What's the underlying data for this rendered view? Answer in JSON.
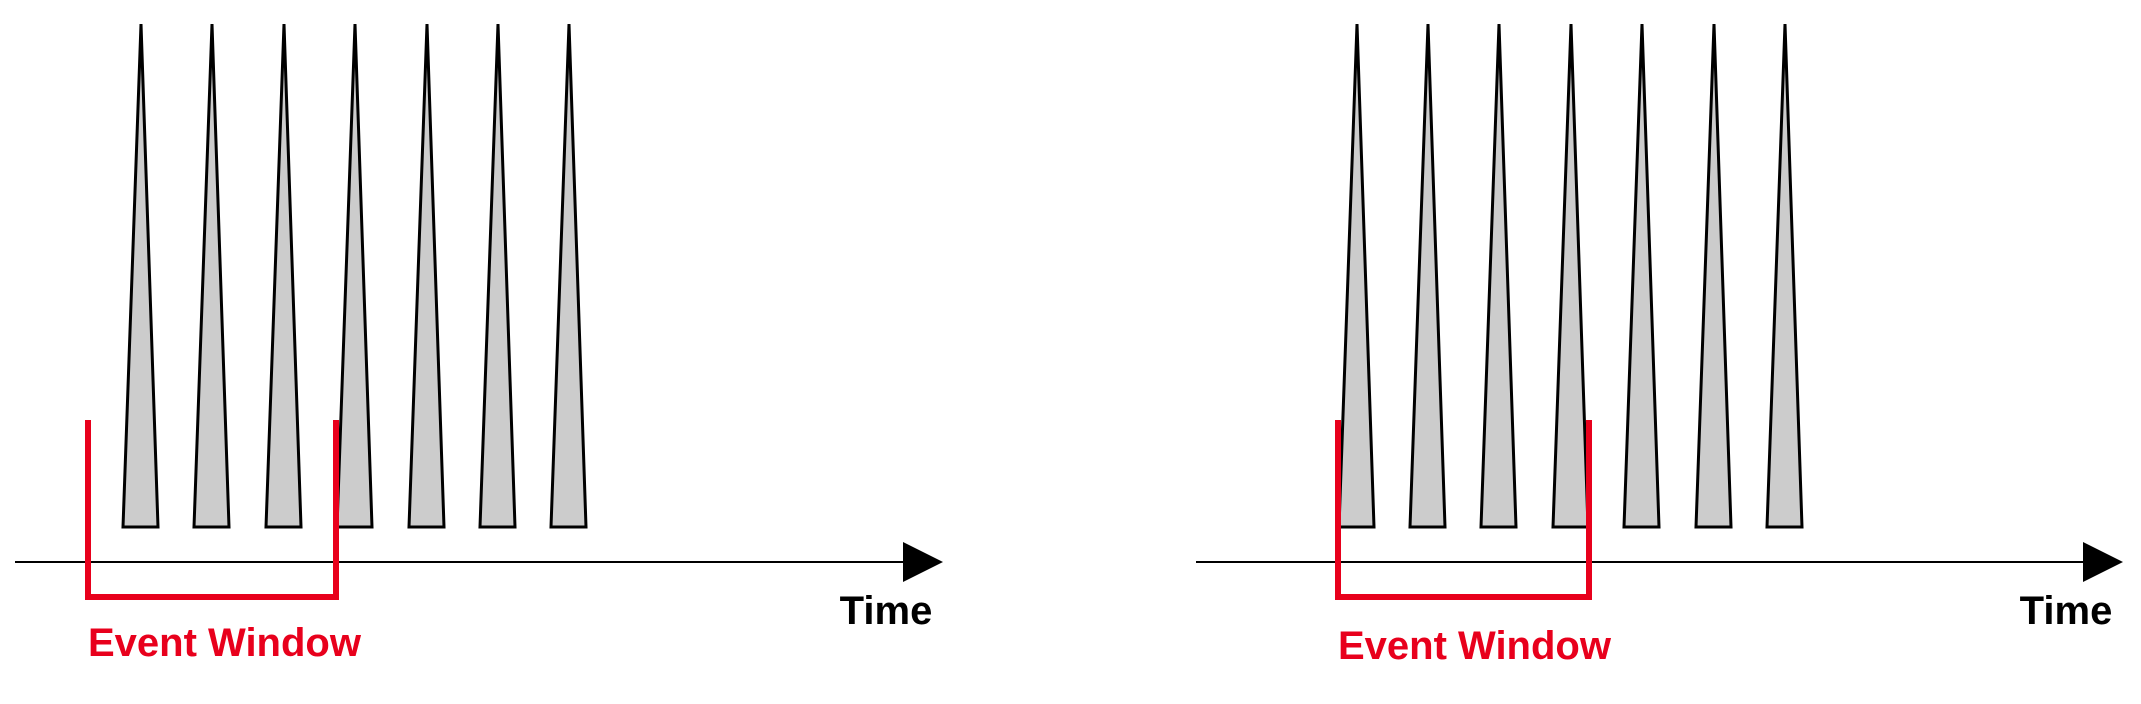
{
  "colors": {
    "spike_fill": "#cccccc",
    "spike_stroke": "#000000",
    "axis": "#000000",
    "event_window": "#e8001c",
    "background": "#ffffff"
  },
  "panels": [
    {
      "axis_label": "Time",
      "window_label": "Event Window",
      "spike_count": 7,
      "window_covers_spikes": "first three spikes fully, fourth spike partially"
    },
    {
      "axis_label": "Time",
      "window_label": "Event Window",
      "spike_count": 7,
      "window_covers_spikes": "first four spikes (fourth partially)"
    }
  ]
}
